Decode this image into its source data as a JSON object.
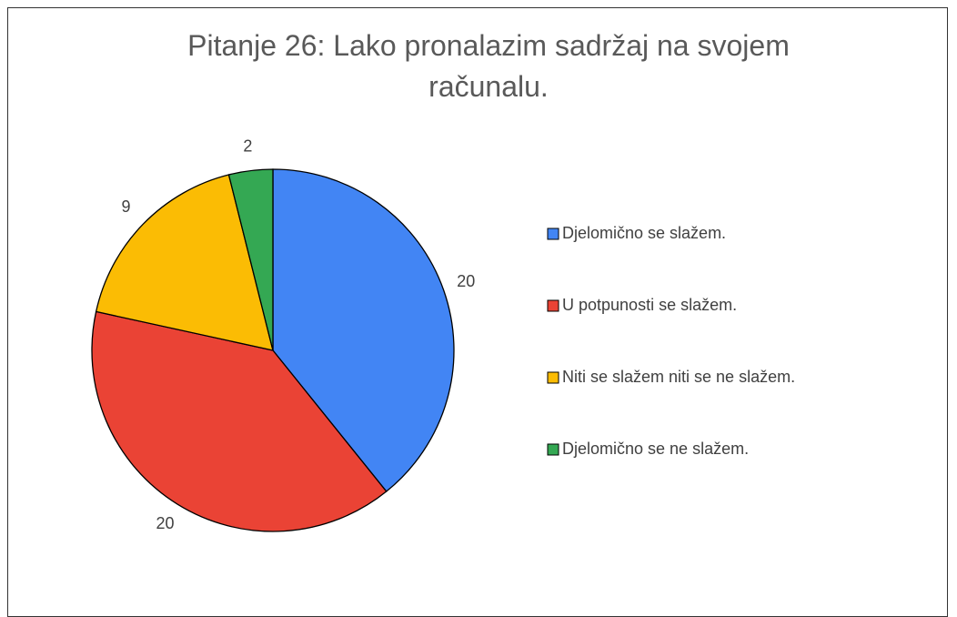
{
  "chart_data": {
    "type": "pie",
    "title": "Pitanje 26: Lako pronalazim sadržaj na svojem računalu.",
    "categories": [
      "Djelomično se slažem.",
      "U potpunosti se slažem.",
      "Niti se slažem niti se ne slažem.",
      "Djelomično se ne slažem."
    ],
    "values": [
      20,
      20,
      9,
      2
    ],
    "colors": [
      "#4285f4",
      "#ea4335",
      "#fbbc04",
      "#34a853"
    ],
    "legend": "right"
  }
}
